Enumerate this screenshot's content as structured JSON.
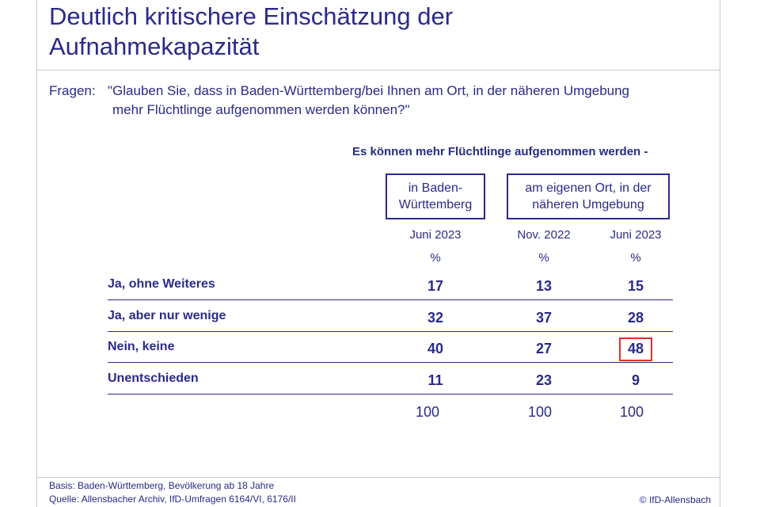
{
  "title": {
    "line1": "Deutlich kritischere Einschätzung der",
    "line2": "Aufnahmekapazität"
  },
  "question": {
    "label": "Fragen:",
    "line1": "\"Glauben Sie, dass in Baden-Württemberg/bei Ihnen am Ort, in der näheren Umgebung",
    "line2": "mehr Flüchtlinge aufgenommen werden können?\""
  },
  "subheading": "Es können mehr Flüchtlinge aufgenommen werden -",
  "groups": [
    {
      "line1": "in Baden-",
      "line2": "Württemberg"
    },
    {
      "line1": "am eigenen Ort, in der",
      "line2": "näheren Umgebung"
    }
  ],
  "columns": [
    {
      "period": "Juni 2023",
      "unit": "%"
    },
    {
      "period": "Nov. 2022",
      "unit": "%"
    },
    {
      "period": "Juni 2023",
      "unit": "%"
    }
  ],
  "table": {
    "rows": [
      {
        "label": "Ja, ohne Weiteres",
        "values": [
          "17",
          "13",
          "15"
        ]
      },
      {
        "label": "Ja, aber nur wenige",
        "values": [
          "32",
          "37",
          "28"
        ]
      },
      {
        "label": "Nein, keine",
        "values": [
          "40",
          "27",
          "48"
        ]
      },
      {
        "label": "Unentschieden",
        "values": [
          "11",
          "23",
          "9"
        ]
      }
    ],
    "totals": [
      "100",
      "100",
      "100"
    ],
    "highlighted_cell": {
      "row": "Nein, keine",
      "column": "Juni 2023 (am eigenen Ort)",
      "value": "48",
      "color": "#e03030"
    }
  },
  "footer": {
    "basis": "Basis: Baden-Württemberg, Bevölkerung ab 18 Jahre",
    "source": "Quelle: Allensbacher Archiv, IfD-Umfragen 6164/VI, 6176/II",
    "copyright": "© IfD-Allensbach"
  },
  "colors": {
    "text": "#2a2a8a",
    "highlight": "#e03030",
    "frame": "#c8c8d8"
  }
}
